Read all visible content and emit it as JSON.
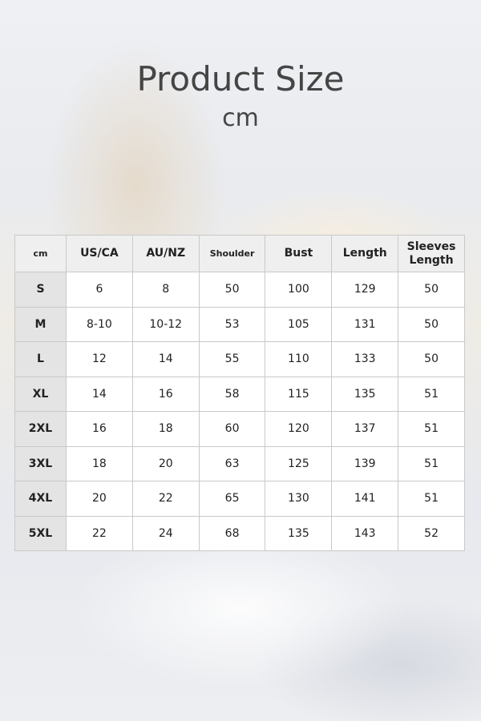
{
  "header": {
    "title": "Product Size",
    "unit": "cm"
  },
  "table": {
    "columns": [
      "cm",
      "US/CA",
      "AU/NZ",
      "Shoulder",
      "Bust",
      "Length",
      "Sleeves Length"
    ],
    "rows": [
      [
        "S",
        "6",
        "8",
        "50",
        "100",
        "129",
        "50"
      ],
      [
        "M",
        "8-10",
        "10-12",
        "53",
        "105",
        "131",
        "50"
      ],
      [
        "L",
        "12",
        "14",
        "55",
        "110",
        "133",
        "50"
      ],
      [
        "XL",
        "14",
        "16",
        "58",
        "115",
        "135",
        "51"
      ],
      [
        "2XL",
        "16",
        "18",
        "60",
        "120",
        "137",
        "51"
      ],
      [
        "3XL",
        "18",
        "20",
        "63",
        "125",
        "139",
        "51"
      ],
      [
        "4XL",
        "20",
        "22",
        "65",
        "130",
        "141",
        "51"
      ],
      [
        "5XL",
        "22",
        "24",
        "68",
        "135",
        "143",
        "52"
      ]
    ]
  }
}
